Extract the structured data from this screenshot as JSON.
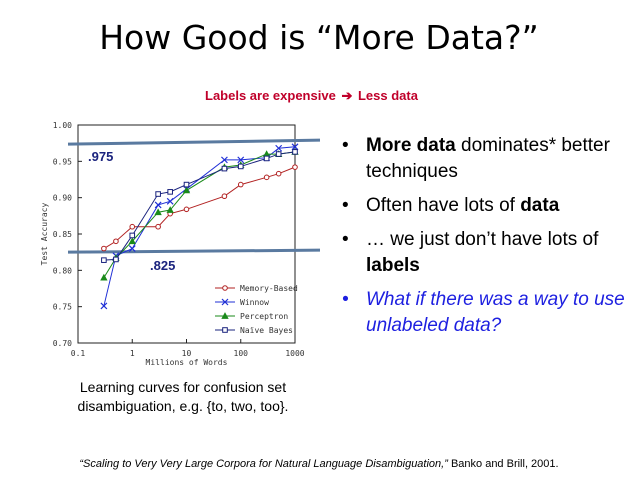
{
  "slide": {
    "title": "How Good is “More Data?”",
    "subtitle_left": "Labels are expensive",
    "subtitle_arrow": "➔",
    "subtitle_right": "Less data",
    "caption": "Learning curves for confusion set disambiguation, e.g. {to, two, too}.",
    "citation_title": "“Scaling to Very Very Large Corpora for Natural Language Disambiguation,”",
    "citation_authors": "Banko and Brill, 2001.",
    "bullets": [
      {
        "parts": [
          {
            "text": "More data",
            "bold": true
          },
          {
            "text": " dominates* better techniques",
            "bold": false
          }
        ],
        "style": "normal"
      },
      {
        "parts": [
          {
            "text": "Often have lots of ",
            "bold": false
          },
          {
            "text": "data",
            "bold": true
          }
        ],
        "style": "normal"
      },
      {
        "parts": [
          {
            "text": "… we just don’t have lots of ",
            "bold": false
          },
          {
            "text": "labels",
            "bold": true
          }
        ],
        "style": "normal"
      },
      {
        "parts": [
          {
            "text": "What if there was a way to use unlabeled data?",
            "bold": false
          }
        ],
        "style": "blue"
      }
    ]
  },
  "chart_data": {
    "type": "line",
    "xlabel": "Millions of Words",
    "ylabel": "Test Accuracy",
    "xscale": "log",
    "xlim": [
      0.1,
      1000
    ],
    "ylim": [
      0.7,
      1.0
    ],
    "x_ticks": [
      "0.1",
      "1",
      "10",
      "100",
      "1000"
    ],
    "y_ticks": [
      "0.70",
      "0.75",
      "0.80",
      "0.85",
      "0.90",
      "0.95",
      "1.00"
    ],
    "legend_position": "bottom-right",
    "x": [
      0.3,
      0.5,
      1,
      3,
      5,
      10,
      50,
      100,
      300,
      500,
      1000
    ],
    "series": [
      {
        "name": "Memory-Based",
        "color": "#b22222",
        "marker": "circle",
        "values": [
          0.83,
          0.84,
          0.86,
          0.86,
          0.878,
          0.884,
          0.902,
          0.918,
          0.928,
          0.933,
          0.942
        ]
      },
      {
        "name": "Winnow",
        "color": "#1f2fd6",
        "marker": "x",
        "values": [
          0.751,
          0.82,
          0.83,
          0.89,
          0.895,
          0.912,
          0.952,
          0.952,
          0.955,
          0.968,
          0.97
        ]
      },
      {
        "name": "Perceptron",
        "color": "#1a8a1a",
        "marker": "triangle",
        "values": [
          0.79,
          0.817,
          0.84,
          0.88,
          0.883,
          0.91,
          0.942,
          0.945,
          0.96,
          0.96,
          0.963
        ]
      },
      {
        "name": "Naïve Bayes",
        "color": "#1a237e",
        "marker": "square",
        "values": [
          0.814,
          0.815,
          0.848,
          0.905,
          0.908,
          0.918,
          0.94,
          0.943,
          0.954,
          0.96,
          0.963
        ]
      }
    ],
    "annotations": [
      {
        "text": ".975",
        "y": 0.975,
        "color": "#1a237e"
      },
      {
        "text": ".825",
        "y": 0.825,
        "color": "#1a237e"
      }
    ],
    "reference_line_color": "#5a7aa0"
  }
}
